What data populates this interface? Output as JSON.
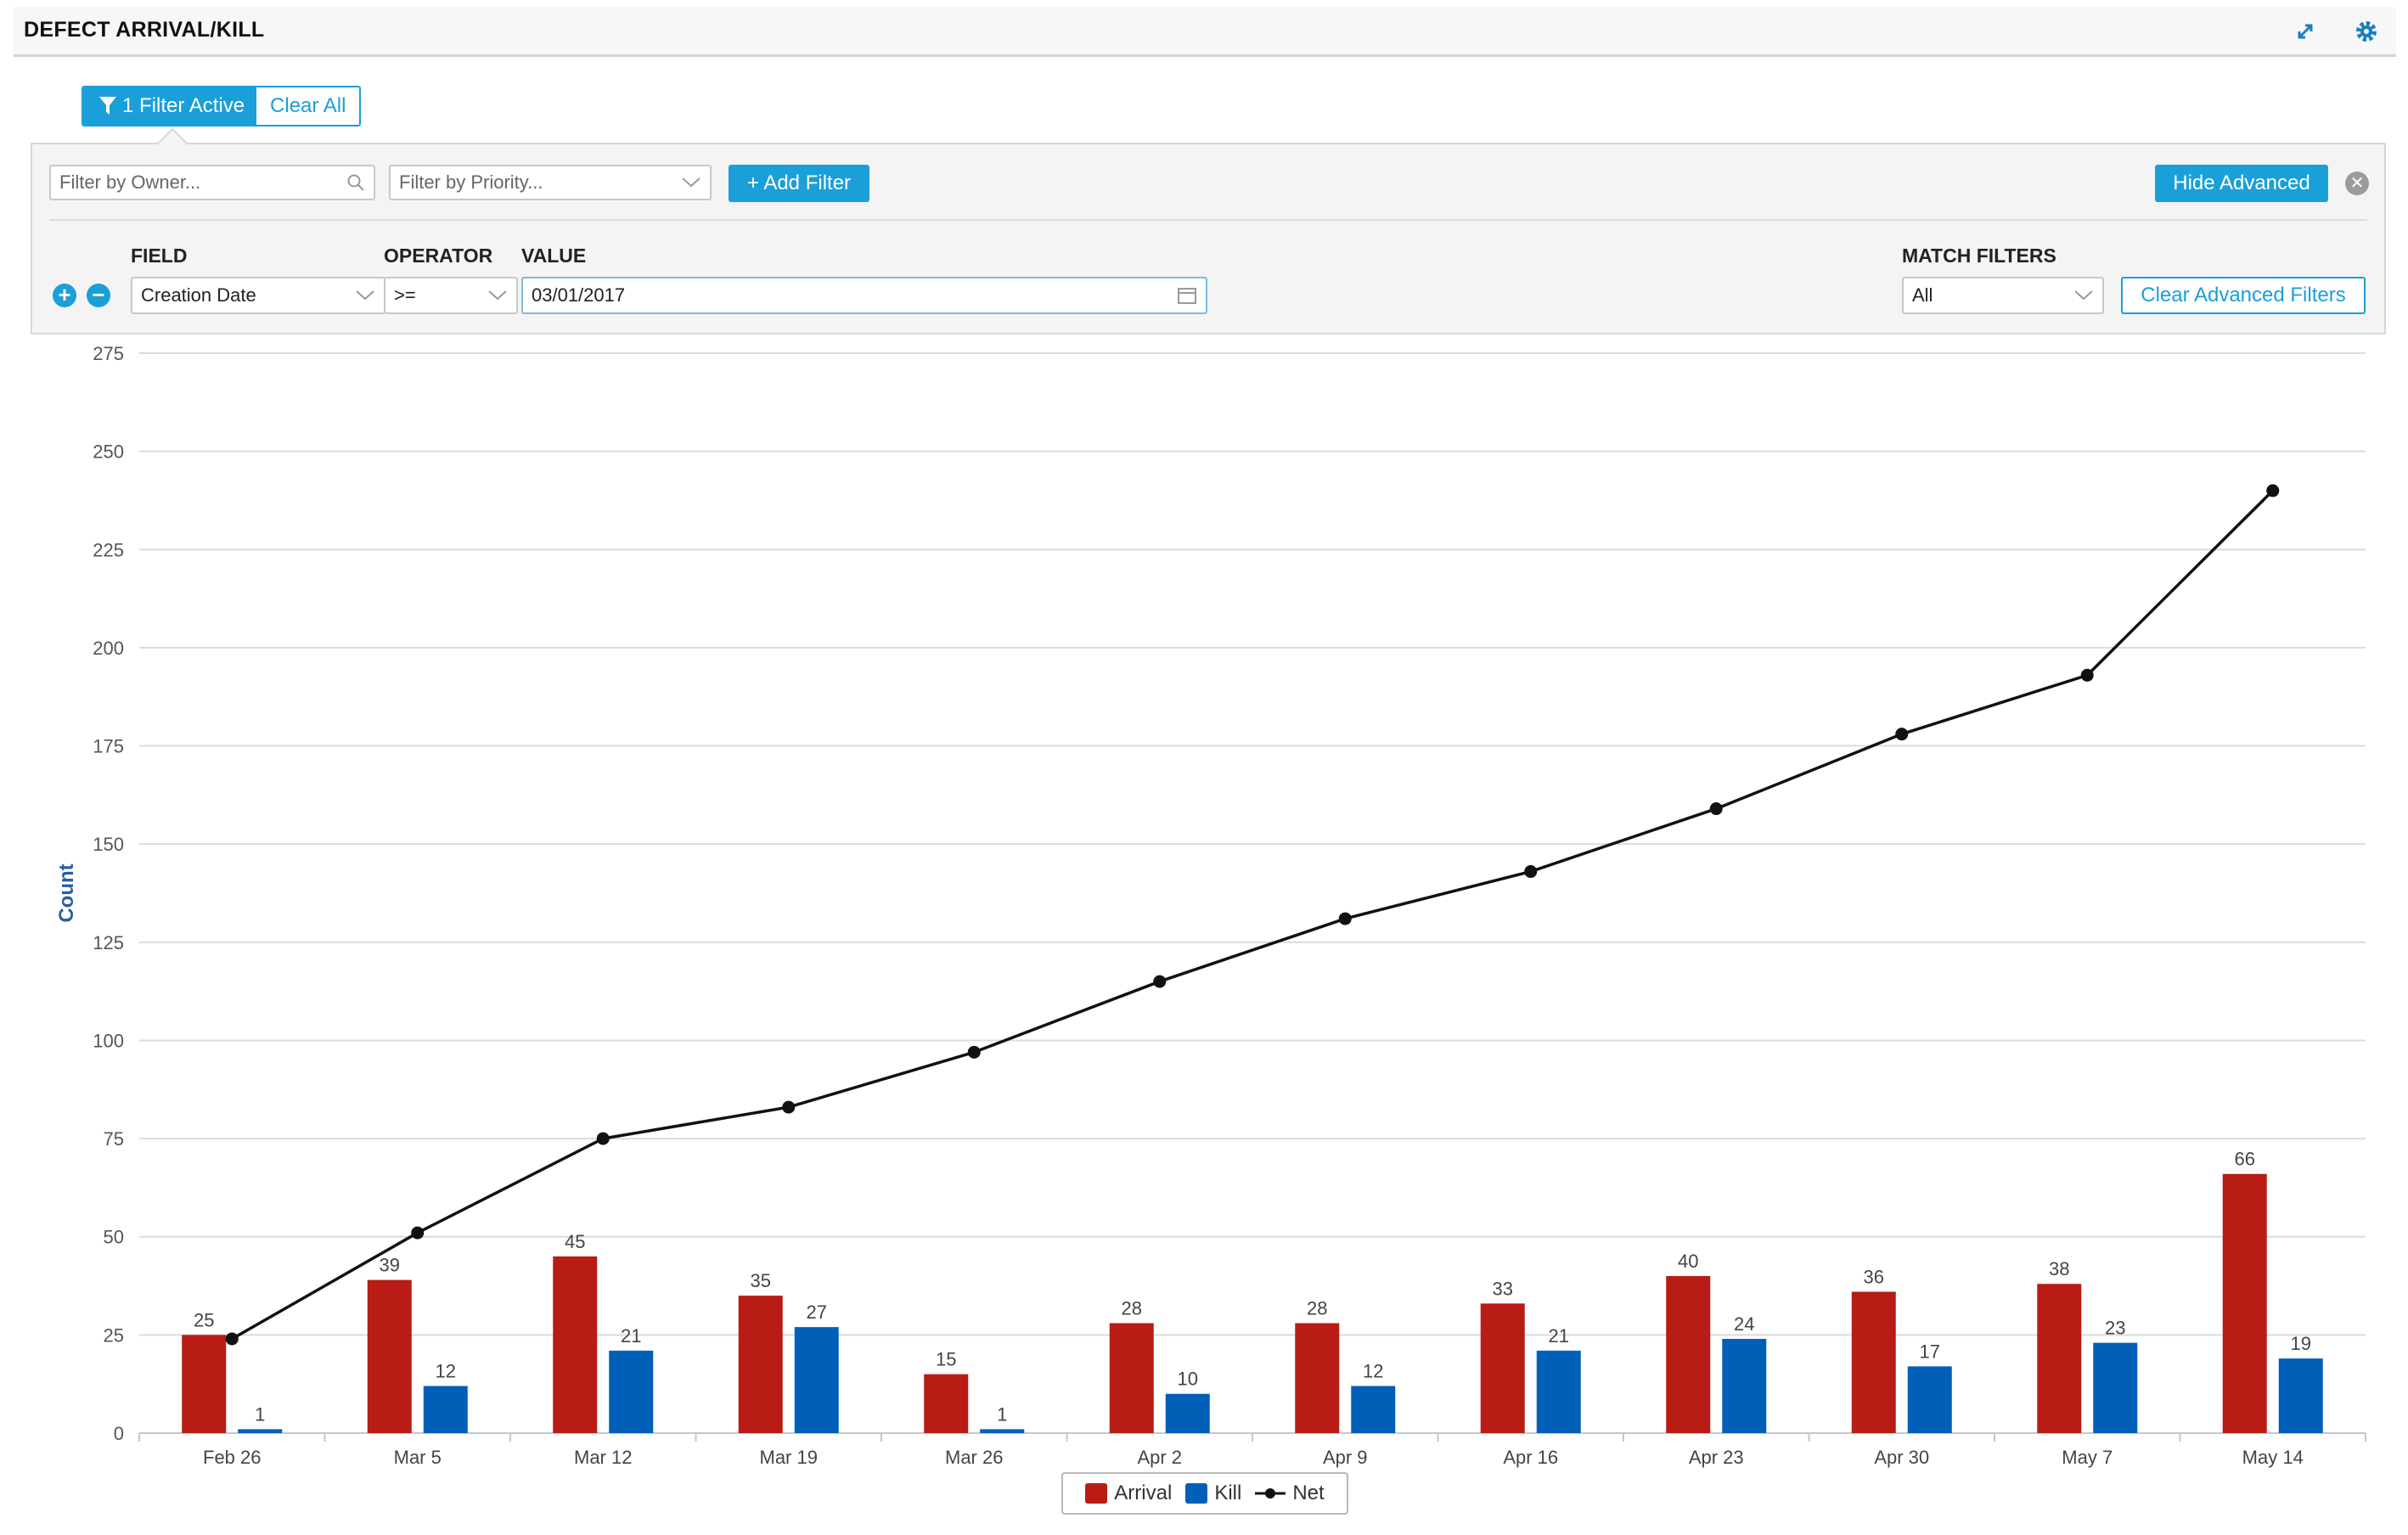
{
  "panel": {
    "title": "DEFECT ARRIVAL/KILL"
  },
  "filter_bar": {
    "active_label": "1 Filter Active",
    "clear_label": "Clear All"
  },
  "advanced": {
    "owner_placeholder": "Filter by Owner...",
    "priority_placeholder": "Filter by Priority...",
    "add_filter_label": "+ Add Filter",
    "hide_advanced_label": "Hide Advanced",
    "headers": {
      "field": "FIELD",
      "operator": "OPERATOR",
      "value": "VALUE",
      "match": "MATCH FILTERS"
    },
    "row": {
      "field": "Creation Date",
      "operator": ">=",
      "value": "03/01/2017"
    },
    "match_value": "All",
    "clear_advanced_label": "Clear Advanced Filters"
  },
  "colors": {
    "accent": "#1a9fd9",
    "arrival": "#b81c14",
    "kill": "#0060b8",
    "net": "#111111"
  },
  "chart_data": {
    "type": "bar",
    "categories": [
      "Feb 26",
      "Mar 5",
      "Mar 12",
      "Mar 19",
      "Mar 26",
      "Apr 2",
      "Apr 9",
      "Apr 16",
      "Apr 23",
      "Apr 30",
      "May 7",
      "May 14"
    ],
    "series": [
      {
        "name": "Arrival",
        "type": "bar",
        "values": [
          25,
          39,
          45,
          35,
          15,
          28,
          28,
          33,
          40,
          36,
          38,
          66
        ]
      },
      {
        "name": "Kill",
        "type": "bar",
        "values": [
          1,
          12,
          21,
          27,
          1,
          10,
          12,
          21,
          24,
          17,
          23,
          19
        ]
      },
      {
        "name": "Net",
        "type": "line",
        "values": [
          24,
          51,
          75,
          83,
          97,
          115,
          131,
          143,
          159,
          178,
          193,
          240
        ]
      }
    ],
    "ylabel": "Count",
    "ylim": [
      0,
      275
    ],
    "yticks": [
      0,
      25,
      50,
      75,
      100,
      125,
      150,
      175,
      200,
      225,
      250,
      275
    ],
    "grid": true,
    "legend": "bottom-center"
  }
}
